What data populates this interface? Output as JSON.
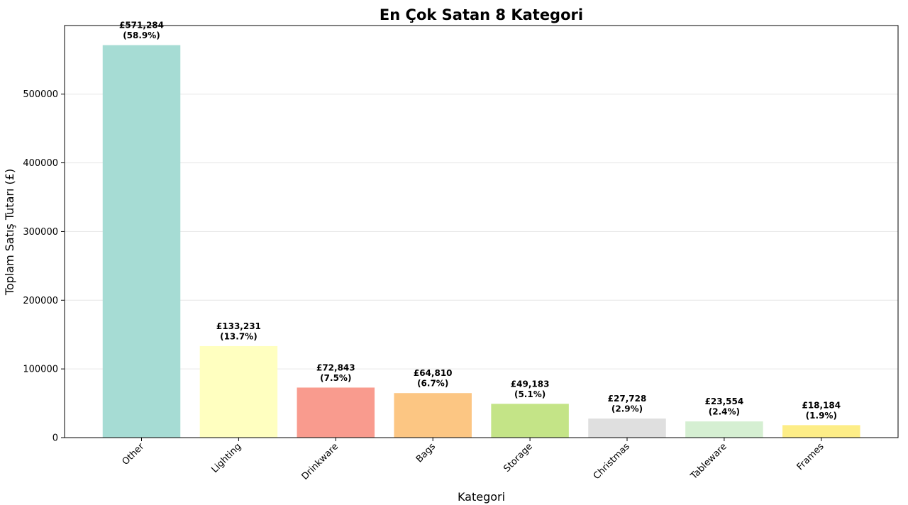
{
  "chart_data": {
    "type": "bar",
    "title": "En Çok Satan 8 Kategori",
    "xlabel": "Kategori",
    "ylabel": "Toplam Satış Tutarı (£)",
    "categories": [
      "Other",
      "Lighting",
      "Drinkware",
      "Bags",
      "Storage",
      "Christmas",
      "Tableware",
      "Frames"
    ],
    "values": [
      571284,
      133231,
      72843,
      64810,
      49183,
      27728,
      23554,
      18184
    ],
    "value_labels": [
      "£571,284",
      "£133,231",
      "£72,843",
      "£64,810",
      "£49,183",
      "£27,728",
      "£23,554",
      "£18,184"
    ],
    "percent_labels": [
      "(58.9%)",
      "(13.7%)",
      "(7.5%)",
      "(6.7%)",
      "(5.1%)",
      "(2.9%)",
      "(2.4%)",
      "(1.9%)"
    ],
    "colors": [
      "#a6dcd4",
      "#ffffc0",
      "#f99b8e",
      "#fcc683",
      "#c4e487",
      "#dfdfdf",
      "#d5efd2",
      "#fded87"
    ],
    "yticks": [
      0,
      100000,
      200000,
      300000,
      400000,
      500000
    ],
    "ytick_labels": [
      "0",
      "100000",
      "200000",
      "300000",
      "400000",
      "500000"
    ],
    "ylim": [
      0,
      599848
    ],
    "grid": "y",
    "legend": "none"
  }
}
